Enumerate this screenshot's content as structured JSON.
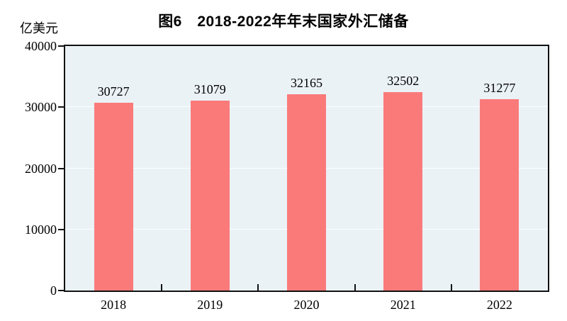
{
  "chart_data": {
    "type": "bar",
    "title": "图6　2018-2022年年末国家外汇储备",
    "ylabel": "亿美元",
    "xlabel": "",
    "categories": [
      "2018",
      "2019",
      "2020",
      "2021",
      "2022"
    ],
    "values": [
      30727,
      31079,
      32165,
      32502,
      31277
    ],
    "ylim": [
      0,
      40000
    ],
    "yticks": [
      0,
      10000,
      20000,
      30000,
      40000
    ],
    "legend": "none",
    "grid": "faint horizontal white lines at y ticks",
    "colors": {
      "bar": "#FA7A7A",
      "plot_background": "#EBF2F6",
      "axis": "#111111",
      "text": "#000000",
      "page_background": "#FFFFFF"
    }
  }
}
